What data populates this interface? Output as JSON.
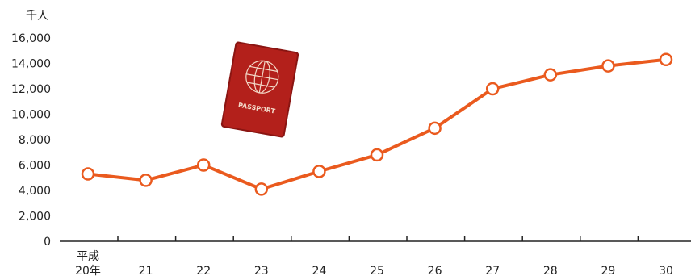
{
  "chart_data": {
    "type": "line",
    "y_unit": "千人",
    "first_category_prefix": "平成",
    "categories": [
      "20年",
      "21",
      "22",
      "23",
      "24",
      "25",
      "26",
      "27",
      "28",
      "29",
      "30"
    ],
    "series": [
      {
        "values": [
          5300,
          4800,
          6000,
          4100,
          5500,
          6800,
          8900,
          12000,
          13100,
          13800,
          14300
        ]
      }
    ],
    "ylim": [
      0,
      16000
    ],
    "yticks": [
      0,
      2000,
      4000,
      6000,
      8000,
      10000,
      12000,
      14000,
      16000
    ],
    "ytick_labels": [
      "0",
      "2,000",
      "4,000",
      "6,000",
      "8,000",
      "10,000",
      "12,000",
      "14,000",
      "16,000"
    ],
    "grid": false,
    "colors": {
      "series": "#ea5a1e",
      "passport": "#b3201b",
      "passport_text": "#f3d9c8"
    }
  },
  "illustration": {
    "icon": "passport-icon",
    "text": "PASSPORT"
  }
}
